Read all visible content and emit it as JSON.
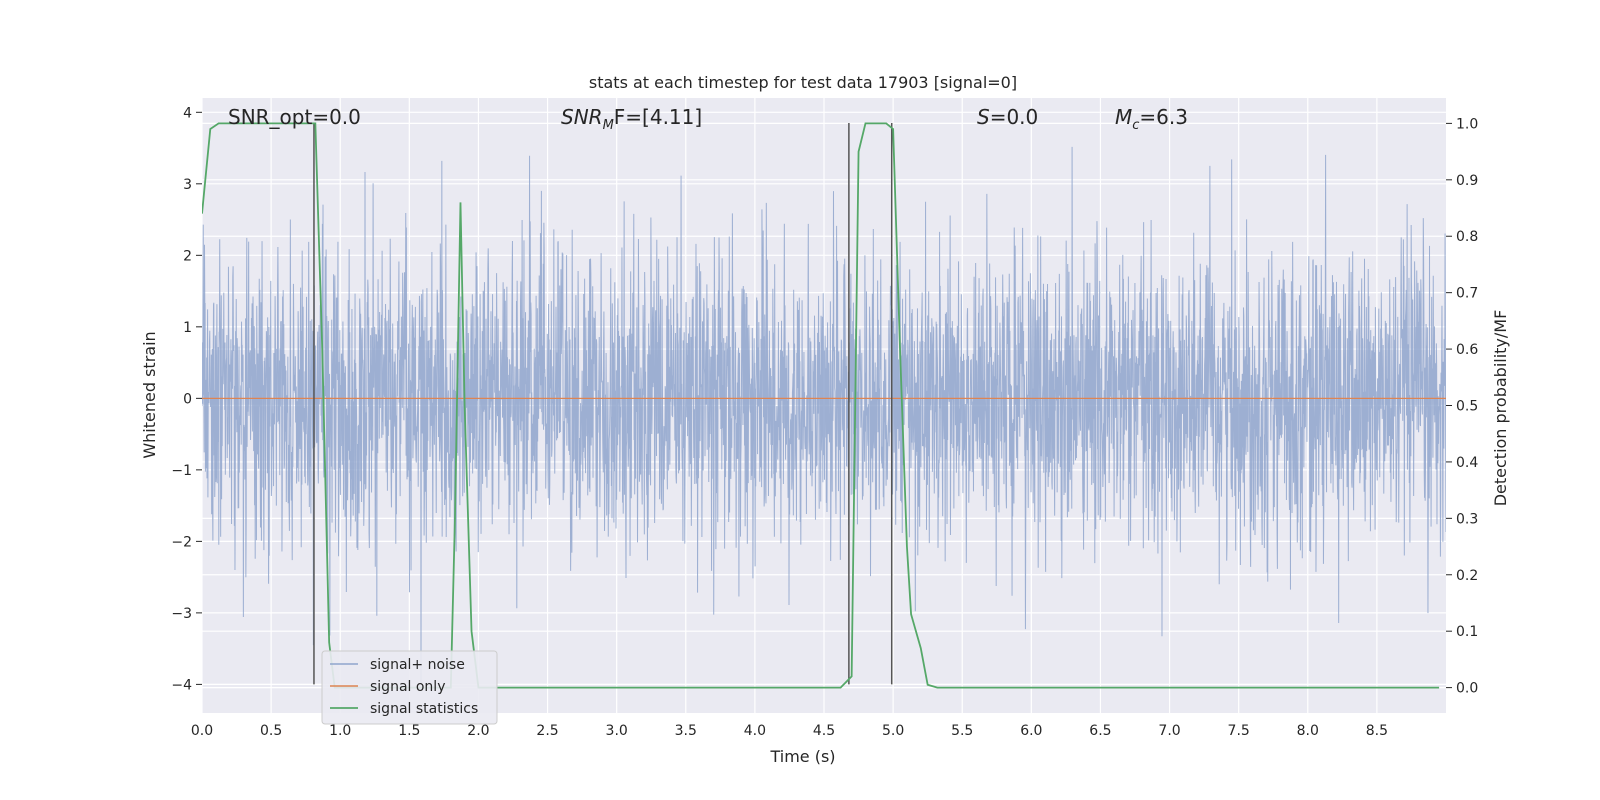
{
  "chart_data": {
    "type": "line",
    "title": "stats at each timestep for test data 17903 [signal=0]",
    "xlabel": "Time (s)",
    "ylabel": "Whitened strain",
    "y2label": "Detection probability/MF",
    "xlim": [
      0.0,
      9.0
    ],
    "ylim": [
      -4.4,
      4.2
    ],
    "y2lim": [
      -0.045,
      1.045
    ],
    "x_ticks": [
      "0.0",
      "0.5",
      "1.0",
      "1.5",
      "2.0",
      "2.5",
      "3.0",
      "3.5",
      "4.0",
      "4.5",
      "5.0",
      "5.5",
      "6.0",
      "6.5",
      "7.0",
      "7.5",
      "8.0",
      "8.5"
    ],
    "y_ticks": [
      "4",
      "3",
      "2",
      "1",
      "0",
      "−1",
      "−2",
      "−3",
      "−4"
    ],
    "y2_ticks": [
      "1.0",
      "0.9",
      "0.8",
      "0.7",
      "0.6",
      "0.5",
      "0.4",
      "0.3",
      "0.2",
      "0.1",
      "0.0"
    ],
    "grid": true,
    "legend_position": "lower-left",
    "annotations": {
      "snr_opt": "SNR_opt=0.0",
      "snr_mf_sym": "SNR",
      "snr_mf_sub": "M",
      "snr_mf_rest": "F=[4.11]",
      "s_sym": "S",
      "s_rest": "=0.0",
      "mc_sym": "M",
      "mc_sub": "c",
      "mc_rest": "=6.3"
    },
    "series": [
      {
        "name": "signal+ noise",
        "color": "#8fa5cc",
        "kind": "noise",
        "std": 1.0,
        "range": [
          -4.0,
          3.9
        ],
        "n_samples": 4000
      },
      {
        "name": "signal only",
        "color": "#dd8452",
        "kind": "constant",
        "value": 0.0
      },
      {
        "name": "signal statistics",
        "color": "#55a868",
        "axis": "right",
        "x": [
          0.0,
          0.06,
          0.12,
          0.2,
          0.3,
          0.4,
          0.5,
          0.6,
          0.7,
          0.8,
          0.82,
          0.87,
          0.92,
          0.96,
          1.0,
          1.1,
          1.5,
          1.8,
          1.83,
          1.87,
          1.9,
          1.95,
          2.0,
          2.1,
          3.0,
          4.0,
          4.62,
          4.66,
          4.7,
          4.75,
          4.8,
          4.85,
          4.9,
          4.95,
          5.0,
          5.05,
          5.1,
          5.13,
          5.2,
          5.25,
          5.32,
          6.0,
          7.0,
          8.0,
          8.95
        ],
        "y": [
          0.84,
          0.99,
          1.0,
          1.0,
          1.0,
          1.0,
          1.0,
          1.0,
          1.0,
          1.0,
          1.0,
          0.6,
          0.08,
          0.0,
          0.0,
          0.0,
          0.0,
          0.0,
          0.3,
          0.86,
          0.5,
          0.1,
          0.0,
          0.0,
          0.0,
          0.0,
          0.0,
          0.01,
          0.02,
          0.95,
          1.0,
          1.0,
          1.0,
          1.0,
          0.99,
          0.6,
          0.25,
          0.13,
          0.07,
          0.005,
          0.0,
          0.0,
          0.0,
          0.0,
          0.0
        ]
      }
    ],
    "vlines": [
      {
        "x": 0.81,
        "y_top": 3.85,
        "y_bottom": -4.0,
        "color": "#555555"
      },
      {
        "x": 4.68,
        "y_top": 3.85,
        "y_bottom": -4.0,
        "color": "#555555"
      },
      {
        "x": 4.99,
        "y_top": 3.85,
        "y_bottom": -4.0,
        "color": "#555555"
      }
    ],
    "colors": {
      "plot_background": "#eaeaf2",
      "grid": "#ffffff"
    }
  }
}
